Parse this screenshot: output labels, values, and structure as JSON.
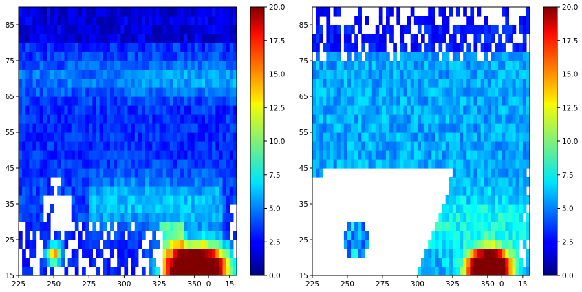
{
  "chart_data": [
    {
      "type": "heatmap",
      "panel": "left",
      "title": "",
      "xlabel": "",
      "ylabel": "",
      "xticks": [
        "225",
        "250",
        "275",
        "300",
        "325",
        "350",
        "0",
        "15"
      ],
      "yticks": [
        "15",
        "25",
        "35",
        "45",
        "55",
        "65",
        "75",
        "85"
      ],
      "xlim_lon_unwrapped": [
        225,
        380
      ],
      "ylim": [
        15,
        90
      ],
      "colorbar": {
        "min": 0.0,
        "max": 20.0,
        "colormap": "jet",
        "ticks": [
          "0.0",
          "2.5",
          "5.0",
          "7.5",
          "10.0",
          "12.5",
          "15.0",
          "17.5",
          "20.0"
        ]
      },
      "grid": "lon 2.5 x lat 2.5",
      "missing_data": "white (no data) patches near lon 250 lat 35-48 and scattered along lon 225-330 lat 15-30",
      "features": [
        {
          "desc": "intense maximum (>20)",
          "lon_range": [
            335,
            370
          ],
          "lat_range": [
            15,
            25
          ]
        },
        {
          "desc": "secondary maximum ~13",
          "lon": 250,
          "lat": 21
        },
        {
          "desc": "background mostly 1-5, band of ~5-7 near lat 65-75"
        }
      ]
    },
    {
      "type": "heatmap",
      "panel": "right",
      "title": "",
      "xlabel": "",
      "ylabel": "",
      "xticks": [
        "225",
        "250",
        "275",
        "300",
        "325",
        "350",
        "0",
        "15"
      ],
      "yticks": [
        "15",
        "25",
        "35",
        "45",
        "55",
        "65",
        "75",
        "85"
      ],
      "xlim_lon_unwrapped": [
        225,
        380
      ],
      "ylim": [
        15,
        90
      ],
      "colorbar": {
        "min": 0.0,
        "max": 20.0,
        "colormap": "jet",
        "ticks": [
          "0.0",
          "2.5",
          "5.0",
          "7.5",
          "10.0",
          "12.5",
          "15.0",
          "17.5",
          "20.0"
        ]
      },
      "grid": "lon 2.5 x lat 2.5",
      "missing_data": "large white (no data) wedge over lon 225-300 lat 15-45 and scattered gaps above lat 75",
      "features": [
        {
          "desc": "intense maximum (>20)",
          "lon_range": [
            340,
            365
          ],
          "lat_range": [
            15,
            25
          ]
        },
        {
          "desc": "broad field ~4-8 across mid latitudes"
        },
        {
          "desc": "isolated blob ~3-9",
          "lon": 255,
          "lat": 24
        }
      ]
    }
  ]
}
